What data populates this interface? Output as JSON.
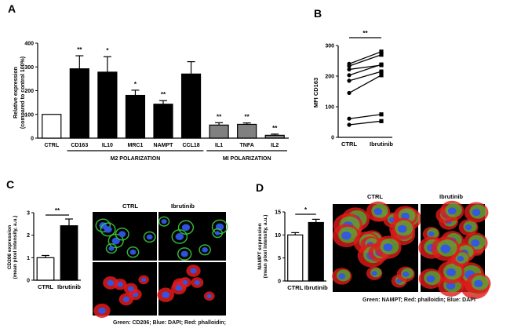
{
  "panels": {
    "A": "A",
    "B": "B",
    "C": "C",
    "D": "D"
  },
  "chart_data": [
    {
      "id": "A",
      "type": "bar",
      "categories": [
        "CTRL",
        "CD163",
        "IL10",
        "MRC1",
        "NAMPT",
        "CCL18",
        "IL1",
        "TNFA",
        "IL2"
      ],
      "values": [
        100,
        292,
        278,
        180,
        143,
        270,
        55,
        58,
        12
      ],
      "errors": [
        0,
        55,
        65,
        22,
        15,
        52,
        10,
        6,
        5
      ],
      "bar_colors": [
        "#ffffff",
        "#000000",
        "#000000",
        "#000000",
        "#000000",
        "#000000",
        "#808080",
        "#808080",
        "#808080"
      ],
      "significance": [
        "",
        "**",
        "*",
        "*",
        "**",
        "",
        "**",
        "**",
        "**"
      ],
      "ylabel": "Relative expression",
      "ylabel2": "(compared to control 100%)",
      "ylim": [
        0,
        400
      ],
      "yticks": [
        "0",
        "100",
        "200",
        "300",
        "400"
      ],
      "groups": [
        {
          "label": "M2 POLARIZATION",
          "from": 1,
          "to": 5
        },
        {
          "label": "MI POLARIZATION",
          "from": 6,
          "to": 8
        }
      ]
    },
    {
      "id": "B",
      "type": "line",
      "categories": [
        "CTRL",
        "Ibrutinib"
      ],
      "pairs": [
        [
          240,
          280
        ],
        [
          233,
          270
        ],
        [
          222,
          236
        ],
        [
          203,
          238
        ],
        [
          185,
          215
        ],
        [
          145,
          203
        ],
        [
          61,
          75
        ],
        [
          41,
          53
        ]
      ],
      "ylabel": "MFI CD163",
      "ylim": [
        0,
        300
      ],
      "yticks": [
        "0",
        "100",
        "200",
        "300"
      ],
      "significance": "**"
    },
    {
      "id": "C",
      "type": "bar",
      "categories": [
        "CTRL",
        "Ibrutinib"
      ],
      "values": [
        1.0,
        2.42
      ],
      "errors": [
        0.1,
        0.3
      ],
      "bar_colors": [
        "#ffffff",
        "#000000"
      ],
      "ylabel": "CD206 expression",
      "ylabel2": "(mean pixel intensity, a.u.)",
      "ylim": [
        0,
        3
      ],
      "yticks": [
        "0",
        "1",
        "2",
        "3"
      ],
      "significance": "**"
    },
    {
      "id": "D",
      "type": "bar",
      "categories": [
        "CTRL",
        "Ibrutinib"
      ],
      "values": [
        10.0,
        12.7
      ],
      "errors": [
        0.5,
        0.7
      ],
      "bar_colors": [
        "#ffffff",
        "#000000"
      ],
      "ylabel": "NAMPT expression",
      "ylabel2": "(mean pixel intensity, a.u.)",
      "ylim": [
        0,
        15
      ],
      "yticks": [
        "0",
        "5",
        "10",
        "15"
      ],
      "significance": "*"
    }
  ],
  "microscopy": {
    "C": {
      "columns": [
        "CTRL",
        "Ibrutinib"
      ],
      "caption": "Green: CD206; Blue: DAPI; Red: phalloidin;"
    },
    "D": {
      "columns": [
        "CTRL",
        "Ibrutinib"
      ],
      "caption": "Green: NAMPT; Red: phalloidin; Blue: DAPI"
    }
  },
  "colors": {
    "background": "#ffffff",
    "ink": "#000000",
    "grey_bar": "#808080",
    "micro_bg": "#000000",
    "dapi": "#2f56e8",
    "phalloidin": "#e01a1a",
    "green_marker": "#37c93a"
  }
}
